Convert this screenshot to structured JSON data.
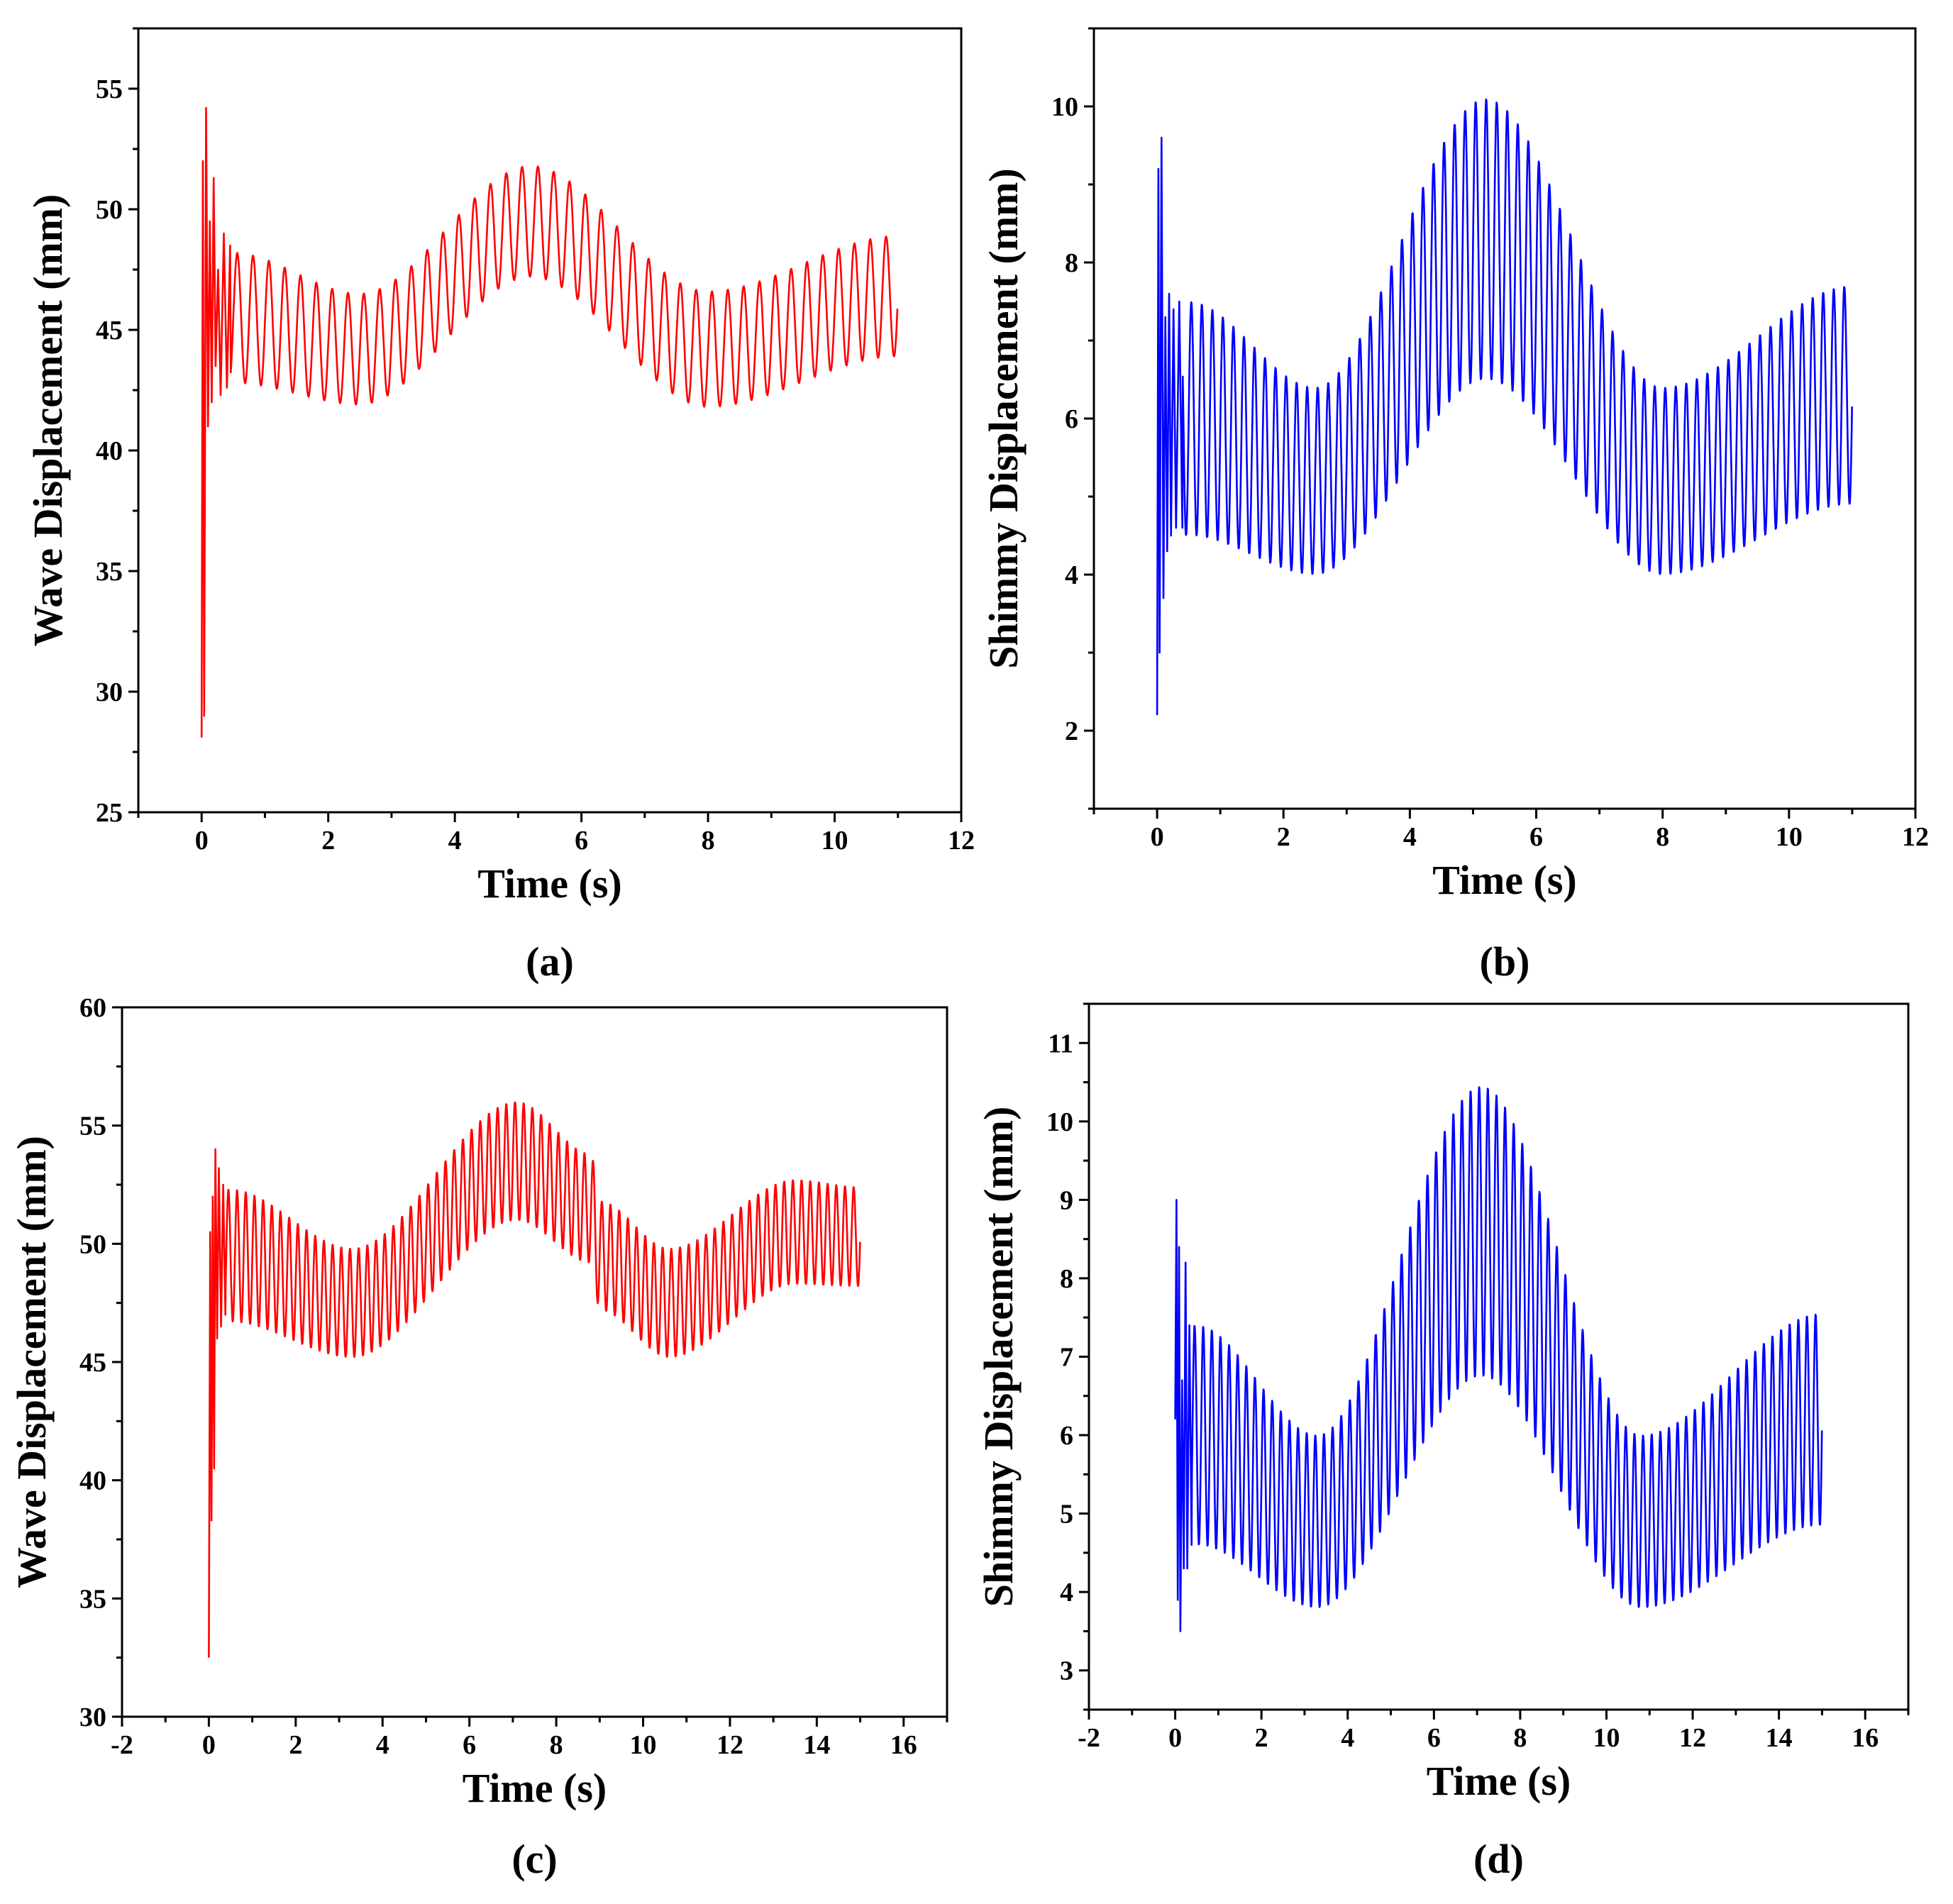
{
  "chart_data": [
    {
      "panel": "(a)",
      "type": "line",
      "title": "",
      "xlabel": "Time (s)",
      "ylabel": "Wave Displacement (mm)",
      "xlim": [
        -1,
        12
      ],
      "ylim": [
        25,
        57.5
      ],
      "xticks": [
        0,
        2,
        4,
        6,
        8,
        10,
        12
      ],
      "yticks": [
        25,
        30,
        35,
        40,
        45,
        50,
        55
      ],
      "color": "#ff0000",
      "series": [
        {
          "name": "wave displacement",
          "duration": 11.0,
          "osc_freq_hz": 4.0,
          "baseline": {
            "t": [
              0.5,
              2.5,
              5.2,
              8.0,
              11.0
            ],
            "v": [
              45.5,
              44.2,
              49.5,
              44.2,
              46.4
            ]
          },
          "amplitude": {
            "t": [
              0.5,
              2.5,
              5.2,
              8.0,
              11.0
            ],
            "v": [
              2.7,
              2.3,
              2.3,
              2.4,
              2.5
            ]
          },
          "transient": {
            "t": [
              0,
              0.02,
              0.04,
              0.07,
              0.1,
              0.13,
              0.16,
              0.19,
              0.22,
              0.26,
              0.3,
              0.35,
              0.4,
              0.45
            ],
            "v": [
              28.1,
              52.0,
              29.0,
              54.2,
              41.0,
              49.5,
              42.0,
              51.3,
              43.5,
              47.5,
              42.3,
              49.0,
              42.6,
              48.5
            ]
          }
        }
      ]
    },
    {
      "panel": "(b)",
      "type": "line",
      "title": "",
      "xlabel": "Time (s)",
      "ylabel": "Shimmy Displacement (mm)",
      "xlim": [
        -1,
        12
      ],
      "ylim": [
        1,
        11
      ],
      "xticks": [
        0,
        2,
        4,
        6,
        8,
        10,
        12
      ],
      "yticks": [
        2,
        4,
        6,
        8,
        10
      ],
      "color": "#0000ff",
      "series": [
        {
          "name": "shimmy displacement",
          "duration": 11.0,
          "osc_freq_hz": 6.0,
          "baseline": {
            "t": [
              0.5,
              2.5,
              5.2,
              8.0,
              11.0
            ],
            "v": [
              6.0,
              5.2,
              8.3,
              5.2,
              6.3
            ]
          },
          "amplitude": {
            "t": [
              0.5,
              2.5,
              5.2,
              8.0,
              11.0
            ],
            "v": [
              1.5,
              1.2,
              1.8,
              1.2,
              1.4
            ]
          },
          "transient": {
            "t": [
              0,
              0.02,
              0.04,
              0.07,
              0.1,
              0.13,
              0.16,
              0.19,
              0.22,
              0.26,
              0.3,
              0.35,
              0.4
            ],
            "v": [
              2.2,
              9.2,
              3.0,
              9.6,
              3.7,
              7.3,
              4.3,
              7.6,
              4.5,
              7.4,
              4.6,
              7.5,
              4.6
            ]
          }
        }
      ]
    },
    {
      "panel": "(c)",
      "type": "line",
      "title": "",
      "xlabel": "Time (s)",
      "ylabel": "Wave Displacement (mm)",
      "xlim": [
        -2,
        17
      ],
      "ylim": [
        30,
        60
      ],
      "xticks": [
        -2,
        0,
        2,
        4,
        6,
        8,
        10,
        12,
        14,
        16
      ],
      "yticks": [
        30,
        35,
        40,
        45,
        50,
        55,
        60
      ],
      "color": "#ff0000",
      "series": [
        {
          "name": "wave displacement",
          "duration": 15.0,
          "osc_freq_hz": 5.0,
          "baseline": {
            "t": [
              0.5,
              3.3,
              7.1,
              8.8,
              9.0,
              10.6,
              13.5,
              15.0
            ],
            "v": [
              49.5,
              47.5,
              53.5,
              51.5,
              49.5,
              47.5,
              50.5,
              50.3
            ]
          },
          "amplitude": {
            "t": [
              0.5,
              3.3,
              7.1,
              8.8,
              9.0,
              10.6,
              13.5,
              15.0
            ],
            "v": [
              2.8,
              2.3,
              2.5,
              2.3,
              2.3,
              2.3,
              2.2,
              2.1
            ]
          },
          "transient": {
            "t": [
              0,
              0.03,
              0.06,
              0.09,
              0.12,
              0.15,
              0.19,
              0.23,
              0.28,
              0.33,
              0.38
            ],
            "v": [
              32.5,
              50.5,
              38.3,
              52.0,
              40.5,
              54.0,
              46.0,
              53.2,
              46.5,
              52.5,
              47.0
            ]
          }
        }
      ]
    },
    {
      "panel": "(d)",
      "type": "line",
      "title": "",
      "xlabel": "Time (s)",
      "ylabel": "Shimmy Displacement (mm)",
      "xlim": [
        -2,
        17
      ],
      "ylim": [
        2.5,
        11.5
      ],
      "xticks": [
        -2,
        0,
        2,
        4,
        6,
        8,
        10,
        12,
        14,
        16
      ],
      "yticks": [
        3,
        4,
        5,
        6,
        7,
        8,
        9,
        10,
        11
      ],
      "color": "#0000ff",
      "series": [
        {
          "name": "shimmy displacement",
          "duration": 15.0,
          "osc_freq_hz": 5.0,
          "baseline": {
            "t": [
              0.5,
              3.3,
              7.1,
              10.8,
              15.0
            ],
            "v": [
              6.0,
              4.9,
              8.6,
              4.9,
              6.2
            ]
          },
          "amplitude": {
            "t": [
              0.5,
              3.3,
              7.1,
              10.8,
              15.0
            ],
            "v": [
              1.4,
              1.1,
              1.85,
              1.1,
              1.35
            ]
          },
          "transient": {
            "t": [
              0,
              0.03,
              0.06,
              0.09,
              0.12,
              0.16,
              0.2,
              0.24,
              0.28,
              0.33,
              0.38
            ],
            "v": [
              6.2,
              9.0,
              3.9,
              8.4,
              3.5,
              6.7,
              4.3,
              8.2,
              4.3,
              7.4,
              4.6
            ]
          }
        }
      ]
    }
  ]
}
